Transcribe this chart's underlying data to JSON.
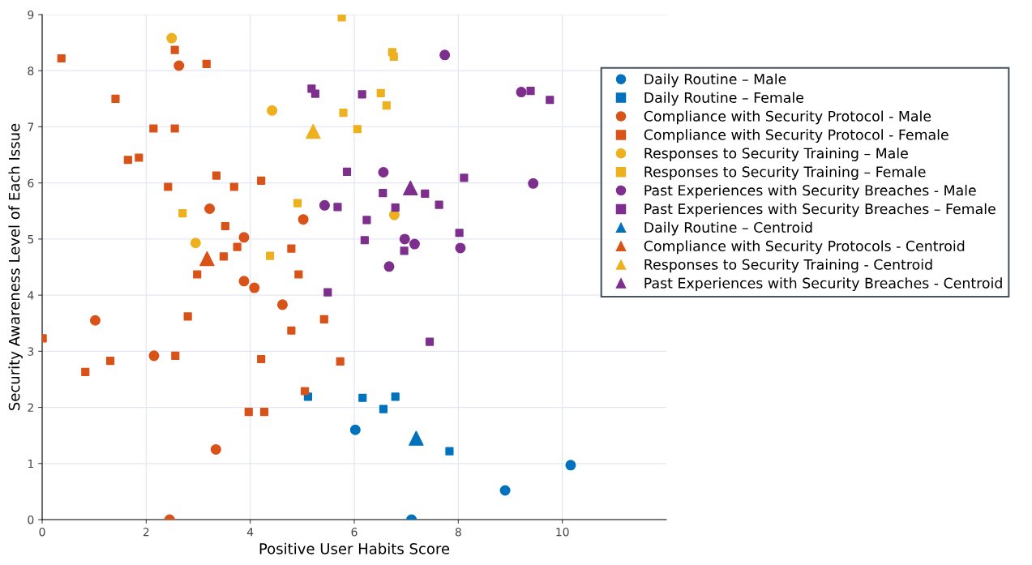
{
  "chart_data": {
    "type": "scatter",
    "xlabel": "Positive User Habits Score",
    "ylabel": "Security Awareness Level of Each Issue",
    "xlim": [
      0,
      12
    ],
    "ylim": [
      0,
      9
    ],
    "xticks": [
      0,
      2,
      4,
      6,
      8,
      10
    ],
    "yticks": [
      0,
      1,
      2,
      3,
      4,
      5,
      6,
      7,
      8,
      9
    ],
    "grid": true,
    "legend": "right",
    "series": [
      {
        "name": "Daily Routine – Male",
        "color": "#0072bd",
        "marker": "circle",
        "x": [
          6.02,
          7.1,
          8.9,
          10.16
        ],
        "values": [
          1.6,
          0,
          0.52,
          0.97
        ]
      },
      {
        "name": "Daily Routine – Female",
        "color": "#0072bd",
        "marker": "square",
        "x": [
          5.11,
          6.16,
          6.56,
          6.79,
          7.83
        ],
        "values": [
          2.19,
          2.17,
          1.97,
          2.19,
          1.22
        ]
      },
      {
        "name": "Compliance with Security Protocol - Male",
        "color": "#d95319",
        "marker": "circle",
        "x": [
          2.63,
          3.22,
          3.88,
          5.02,
          3.88,
          4.08,
          4.62,
          1.02,
          2.15,
          3.34,
          2.45
        ],
        "values": [
          8.09,
          5.54,
          5.03,
          5.35,
          4.25,
          4.13,
          3.83,
          3.55,
          2.92,
          1.25,
          0
        ]
      },
      {
        "name": "Compliance with Security Protocol - Female",
        "color": "#d95319",
        "marker": "square",
        "x": [
          0.37,
          1.41,
          2.14,
          2.55,
          1.65,
          1.86,
          2.55,
          3.16,
          3.35,
          2.42,
          3.69,
          4.21,
          3.52,
          3.75,
          3.49,
          4.79,
          2.98,
          4.93,
          0.01,
          0.83,
          1.31,
          2.56,
          2.8,
          4.21,
          4.79,
          5.42,
          5.73,
          5.05,
          3.97,
          4.27
        ],
        "values": [
          8.22,
          7.5,
          6.97,
          6.97,
          6.41,
          6.45,
          8.37,
          8.12,
          6.13,
          5.93,
          5.93,
          6.04,
          5.23,
          4.86,
          4.69,
          4.83,
          4.37,
          4.37,
          3.23,
          2.63,
          2.83,
          2.92,
          3.62,
          2.86,
          3.37,
          3.57,
          2.82,
          2.29,
          1.92,
          1.92
        ]
      },
      {
        "name": "Responses to Security Training – Male",
        "color": "#edb120",
        "marker": "circle",
        "x": [
          2.49,
          4.42,
          2.95,
          6.77
        ],
        "values": [
          8.58,
          7.29,
          4.93,
          5.43
        ]
      },
      {
        "name": "Responses to Security Training – Female",
        "color": "#edb120",
        "marker": "square",
        "x": [
          5.76,
          5.79,
          2.7,
          4.91,
          4.38,
          6.73,
          6.76,
          6.51,
          6.62,
          6.06
        ],
        "values": [
          8.95,
          7.25,
          5.46,
          5.64,
          4.7,
          8.33,
          8.25,
          7.6,
          7.38,
          6.96
        ]
      },
      {
        "name": "Past Experiences with Security Breaches - Male",
        "color": "#7e2f8e",
        "marker": "circle",
        "x": [
          7.74,
          9.21,
          6.56,
          9.44,
          5.43,
          6.97,
          7.16,
          8.04,
          6.67
        ],
        "values": [
          8.28,
          7.62,
          6.19,
          5.99,
          5.6,
          5.0,
          4.91,
          4.84,
          4.51
        ]
      },
      {
        "name": "Past Experiences with Security Breaches – Female",
        "color": "#7e2f8e",
        "marker": "square",
        "x": [
          5.18,
          5.25,
          5.86,
          5.68,
          6.15,
          9.39,
          9.76,
          6.55,
          8.11,
          7.36,
          7.63,
          6.79,
          6.24,
          6.2,
          8.02,
          6.96,
          5.49,
          7.45
        ],
        "values": [
          7.68,
          7.59,
          6.2,
          5.57,
          7.58,
          7.64,
          7.48,
          5.82,
          6.09,
          5.81,
          5.61,
          5.56,
          5.34,
          4.98,
          5.11,
          4.79,
          4.05,
          3.17
        ]
      },
      {
        "name": "Daily Routine – Centroid",
        "color": "#0072bd",
        "marker": "triangle",
        "x": [
          7.19
        ],
        "values": [
          1.45
        ]
      },
      {
        "name": "Compliance with Security Protocols - Centroid",
        "color": "#d95319",
        "marker": "triangle",
        "x": [
          3.17
        ],
        "values": [
          4.65
        ]
      },
      {
        "name": "Responses to Security Training - Centroid",
        "color": "#edb120",
        "marker": "triangle",
        "x": [
          5.21
        ],
        "values": [
          6.92
        ]
      },
      {
        "name": "Past Experiences with Security Breaches - Centroid",
        "color": "#7e2f8e",
        "marker": "triangle",
        "x": [
          7.08
        ],
        "values": [
          5.91
        ]
      }
    ]
  }
}
